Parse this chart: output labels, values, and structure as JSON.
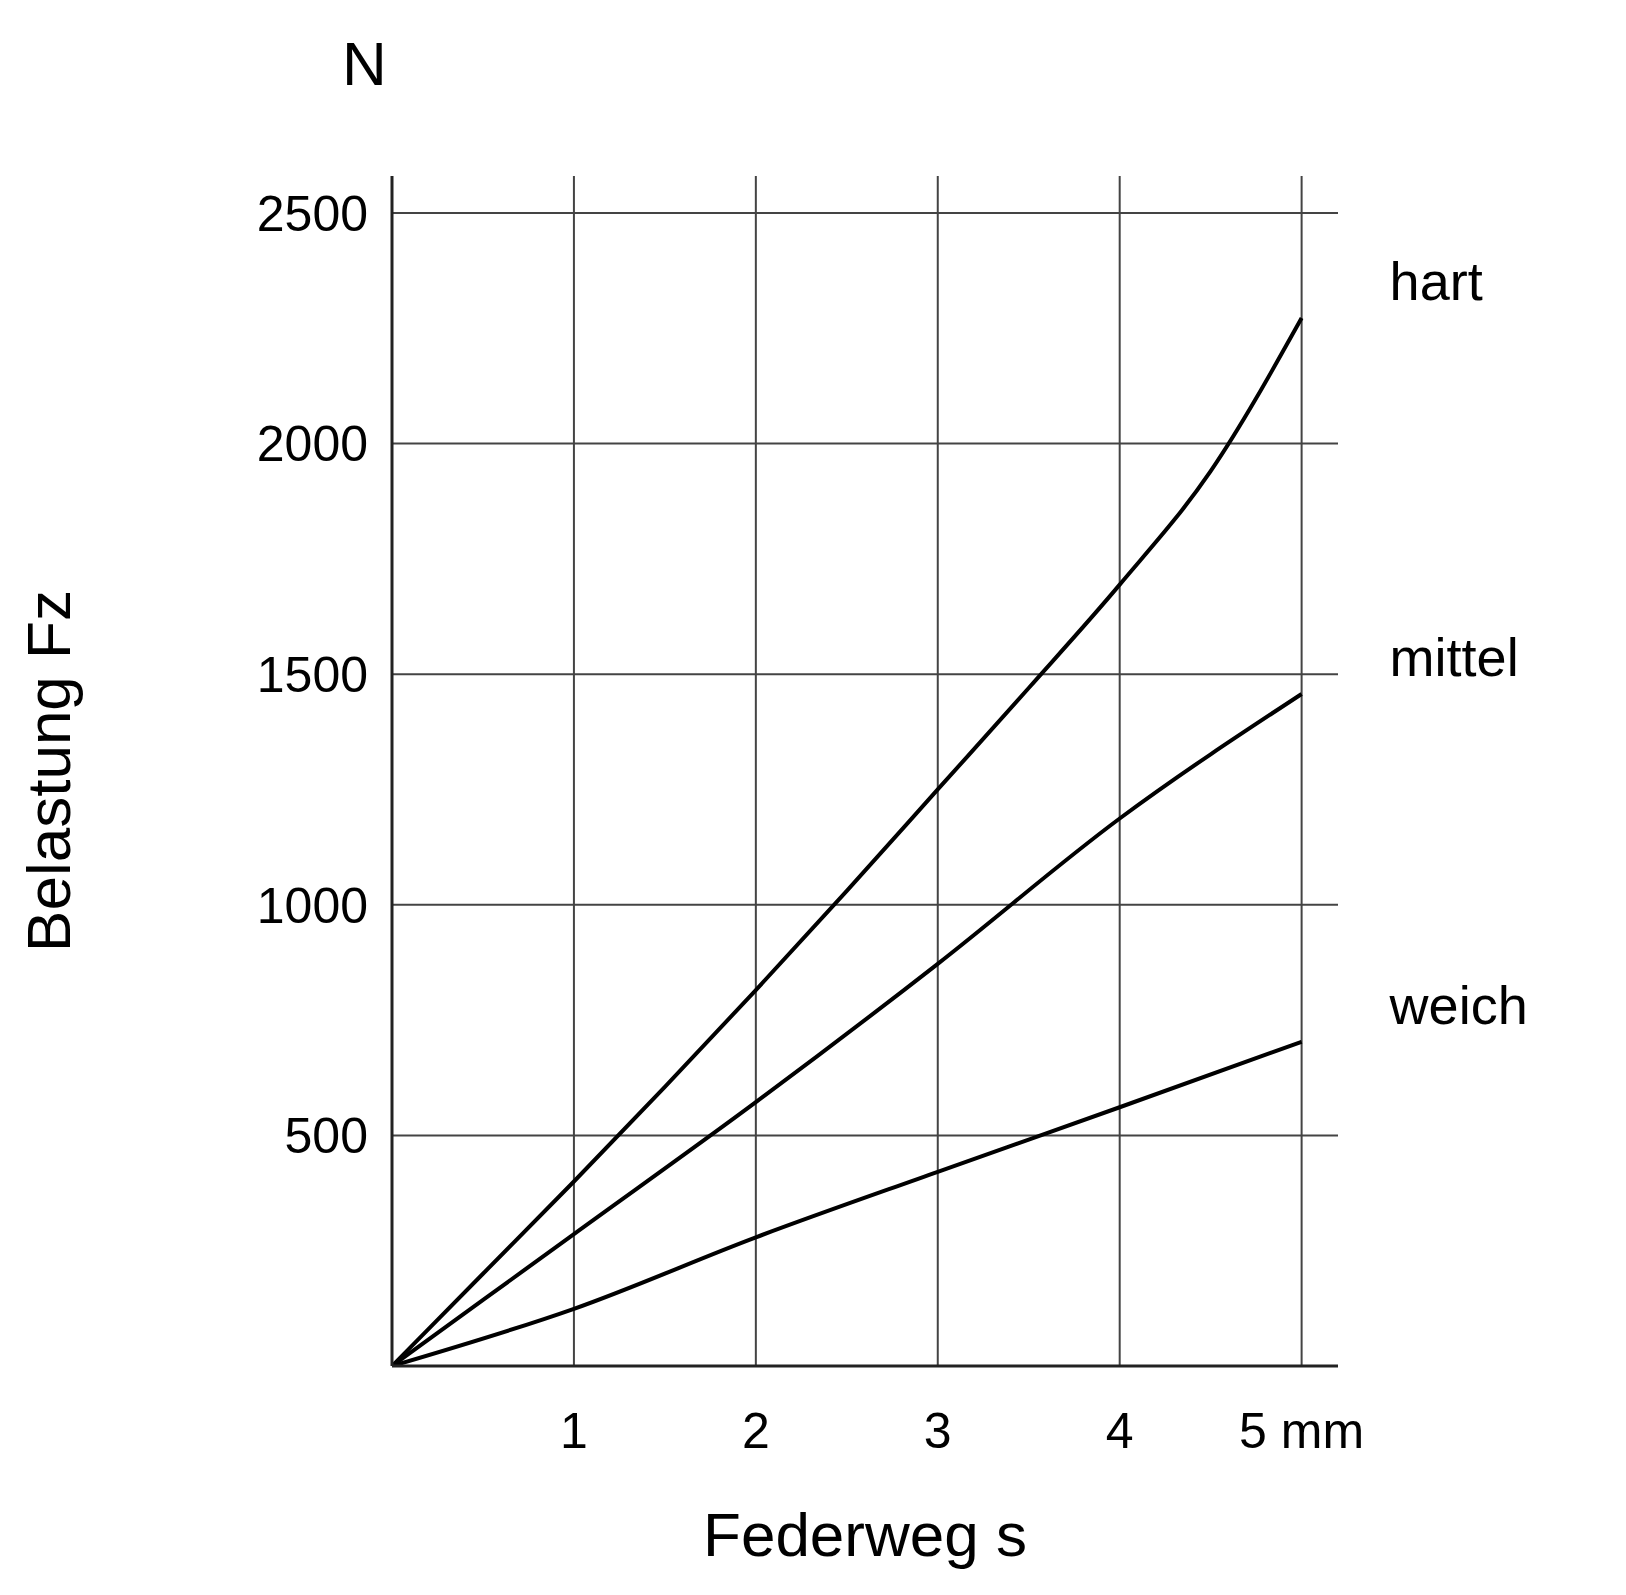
{
  "chart_data": {
    "type": "line",
    "xlabel": "Federweg s",
    "ylabel": "Belastung Fz",
    "annotations": [
      "N"
    ],
    "xlim": [
      0,
      5.2
    ],
    "ylim": [
      0,
      2580
    ],
    "xticks": [
      1,
      2,
      3,
      4,
      {
        "value": 5,
        "label": "5 mm"
      }
    ],
    "yticks": [
      500,
      1000,
      1500,
      2000,
      2500
    ],
    "grid": true,
    "marker": "none",
    "line_style": "solid",
    "series": [
      {
        "name": "hart",
        "color": "#000000",
        "x": [
          0,
          0.5,
          1,
          1.5,
          2,
          2.5,
          3,
          3.5,
          4,
          4.5,
          5
        ],
        "values": [
          0,
          200,
          400,
          605,
          815,
          1030,
          1250,
          1470,
          1694,
          1940,
          2272
        ]
      },
      {
        "name": "mittel",
        "color": "#000000",
        "x": [
          0,
          1,
          2,
          3,
          4,
          5
        ],
        "values": [
          0,
          286,
          572,
          872,
          1187,
          1457
        ]
      },
      {
        "name": "weich",
        "color": "#000000",
        "x": [
          0,
          1,
          2,
          3,
          4,
          5
        ],
        "values": [
          0,
          124,
          279,
          421,
          561,
          703
        ]
      }
    ]
  }
}
